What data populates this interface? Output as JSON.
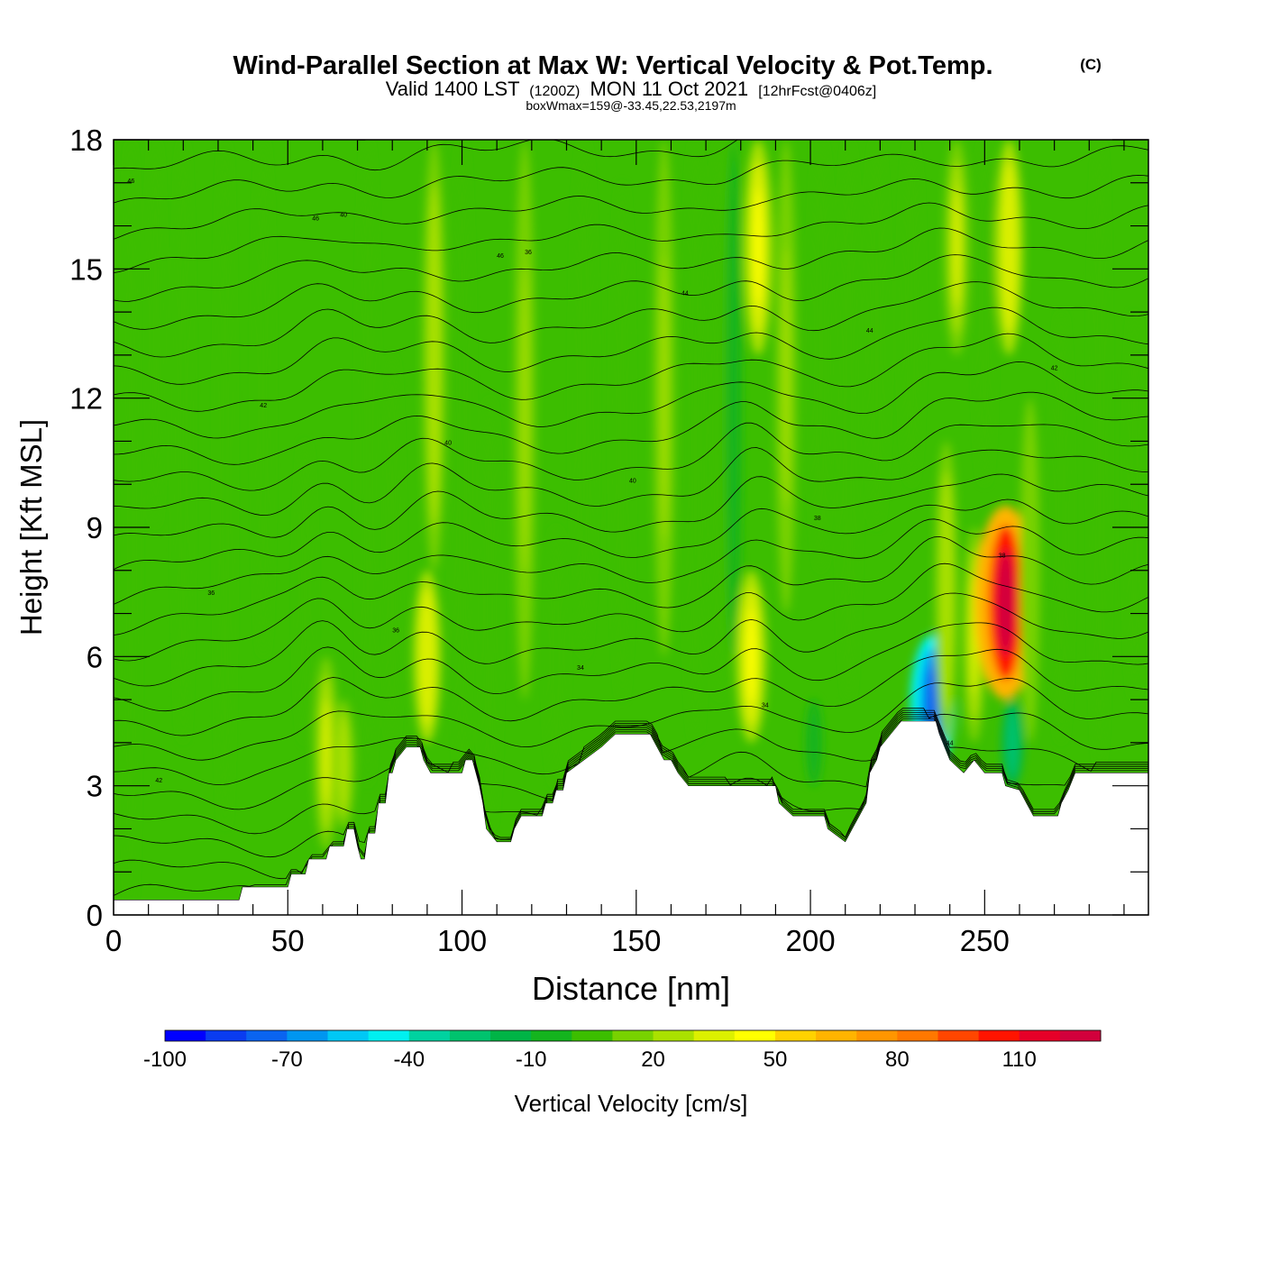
{
  "chart_data": {
    "type": "heatmap",
    "title": {
      "main": "Wind-Parallel Section at Max W: Vertical Velocity & Pot.Temp.",
      "copyright": "(C)",
      "valid_a": "Valid 1400 LST",
      "valid_utc": "(1200Z)",
      "valid_b": "MON 11 Oct 2021",
      "fcst": "[12hrFcst@0406z]",
      "boxwmax": "boxWmax=159@-33.45,22.53,2197m"
    },
    "xlabel": "Distance [nm]",
    "ylabel": "Height [Kft MSL]",
    "xlim": [
      0,
      297
    ],
    "ylim": [
      0,
      18
    ],
    "x_ticks": [
      0,
      50,
      100,
      150,
      200,
      250
    ],
    "y_ticks": [
      0,
      3,
      6,
      9,
      12,
      15,
      18
    ],
    "colorbar": {
      "label": "Vertical Velocity [cm/s]",
      "min": -100,
      "max": 130,
      "step": 10,
      "tick_labels": [
        "-100",
        "-70",
        "-40",
        "-10",
        "20",
        "50",
        "80",
        "110"
      ],
      "colors": [
        "#0000ff",
        "#0a3cf0",
        "#0a64f0",
        "#0096f0",
        "#00c8f5",
        "#00f0f0",
        "#00d2a0",
        "#00c36e",
        "#00b446",
        "#14b41e",
        "#3cbe00",
        "#78d200",
        "#aae100",
        "#dcf000",
        "#ffff00",
        "#ffd200",
        "#ffb400",
        "#ff9600",
        "#ff7800",
        "#ff4600",
        "#ff1400",
        "#e60028",
        "#d2003c"
      ]
    },
    "background_w": 0,
    "updrafts": [
      {
        "x": 5,
        "y0": 0,
        "y1": 18,
        "w": 0
      },
      {
        "x": 12,
        "y0": 9,
        "y1": 18,
        "w": 3
      },
      {
        "x": 20,
        "y0": 4,
        "y1": 18,
        "w": 6
      },
      {
        "x": 32,
        "y0": 2,
        "y1": 18,
        "w": 5
      },
      {
        "x": 43,
        "y0": 6,
        "y1": 18,
        "w": 7
      },
      {
        "x": 55,
        "y0": 4,
        "y1": 11,
        "w": 8
      },
      {
        "x": 61,
        "y0": 1.5,
        "y1": 6,
        "w": 30
      },
      {
        "x": 66,
        "y0": 2,
        "y1": 5,
        "w": 24
      },
      {
        "x": 73,
        "y0": 3,
        "y1": 18,
        "w": 10
      },
      {
        "x": 80,
        "y0": 4,
        "y1": 13,
        "w": 9
      },
      {
        "x": 90,
        "y0": 4,
        "y1": 8,
        "w": 38
      },
      {
        "x": 92,
        "y0": 8,
        "y1": 18,
        "w": 27
      },
      {
        "x": 100,
        "y0": 3,
        "y1": 18,
        "w": 14
      },
      {
        "x": 108,
        "y0": 2,
        "y1": 12,
        "w": 12
      },
      {
        "x": 118,
        "y0": 5,
        "y1": 18,
        "w": 22
      },
      {
        "x": 127,
        "y0": 3,
        "y1": 9,
        "w": 14
      },
      {
        "x": 135,
        "y0": 6,
        "y1": 18,
        "w": 18
      },
      {
        "x": 146,
        "y0": 5,
        "y1": 17,
        "w": 10
      },
      {
        "x": 158,
        "y0": 6,
        "y1": 18,
        "w": 22
      },
      {
        "x": 167,
        "y0": 4,
        "y1": 18,
        "w": 17
      },
      {
        "x": 174,
        "y0": 5,
        "y1": 18,
        "w": 14
      },
      {
        "x": 178,
        "y0": 6,
        "y1": 18,
        "w": -10
      },
      {
        "x": 183,
        "y0": 4,
        "y1": 8,
        "w": 44
      },
      {
        "x": 185,
        "y0": 13,
        "y1": 18,
        "w": 40
      },
      {
        "x": 193,
        "y0": 7,
        "y1": 18,
        "w": 22
      },
      {
        "x": 201,
        "y0": 3,
        "y1": 5,
        "w": -12
      },
      {
        "x": 203,
        "y0": 8,
        "y1": 18,
        "w": 18
      },
      {
        "x": 211,
        "y0": 5,
        "y1": 18,
        "w": 14
      },
      {
        "x": 219,
        "y0": 9,
        "y1": 18,
        "w": 18
      },
      {
        "x": 229,
        "y0": 10,
        "y1": 18,
        "w": 16
      },
      {
        "x": 235,
        "y0": 3.3,
        "y1": 6.5,
        "w": -75
      },
      {
        "x": 239,
        "y0": 4,
        "y1": 11,
        "w": 28
      },
      {
        "x": 242,
        "y0": 13,
        "y1": 18,
        "w": 32
      },
      {
        "x": 247,
        "y0": 4,
        "y1": 9,
        "w": 30
      },
      {
        "x": 250,
        "y0": 10,
        "y1": 18,
        "w": 12
      },
      {
        "x": 256,
        "y0": 5,
        "y1": 9.5,
        "w": 125
      },
      {
        "x": 258,
        "y0": 3,
        "y1": 5,
        "w": -25
      },
      {
        "x": 257,
        "y0": 13,
        "y1": 18,
        "w": 38
      },
      {
        "x": 263,
        "y0": 4,
        "y1": 12,
        "w": 20
      },
      {
        "x": 272,
        "y0": 4,
        "y1": 14,
        "w": 12
      },
      {
        "x": 283,
        "y0": 3.5,
        "y1": 18,
        "w": 8
      },
      {
        "x": 293,
        "y0": 5,
        "y1": 14,
        "w": 6
      }
    ],
    "terrain": [
      [
        0,
        0.35
      ],
      [
        36,
        0.35
      ],
      [
        37,
        0.65
      ],
      [
        50,
        0.65
      ],
      [
        51,
        0.95
      ],
      [
        55,
        0.95
      ],
      [
        56,
        1.3
      ],
      [
        61,
        1.3
      ],
      [
        62,
        1.6
      ],
      [
        65,
        1.6
      ],
      [
        66,
        1.6
      ],
      [
        67,
        2.0
      ],
      [
        69,
        2.0
      ],
      [
        70,
        1.6
      ],
      [
        71,
        1.3
      ],
      [
        72,
        1.3
      ],
      [
        73,
        1.9
      ],
      [
        75,
        1.9
      ],
      [
        76,
        2.6
      ],
      [
        78,
        2.6
      ],
      [
        79,
        3.3
      ],
      [
        80,
        3.3
      ],
      [
        81,
        3.6
      ],
      [
        84,
        3.9
      ],
      [
        88,
        3.9
      ],
      [
        89,
        3.6
      ],
      [
        91,
        3.3
      ],
      [
        100,
        3.3
      ],
      [
        101,
        3.6
      ],
      [
        103,
        3.6
      ],
      [
        104,
        3.3
      ],
      [
        105,
        3.0
      ],
      [
        106,
        2.6
      ],
      [
        107,
        2.0
      ],
      [
        110,
        1.7
      ],
      [
        114,
        1.7
      ],
      [
        115,
        2.0
      ],
      [
        117,
        2.3
      ],
      [
        123,
        2.3
      ],
      [
        124,
        2.6
      ],
      [
        126,
        2.6
      ],
      [
        127,
        2.9
      ],
      [
        129,
        2.9
      ],
      [
        130,
        3.3
      ],
      [
        135,
        3.6
      ],
      [
        140,
        3.9
      ],
      [
        144,
        4.2
      ],
      [
        154,
        4.2
      ],
      [
        156,
        3.9
      ],
      [
        158,
        3.6
      ],
      [
        160,
        3.6
      ],
      [
        162,
        3.3
      ],
      [
        165,
        3.0
      ],
      [
        190,
        3.0
      ],
      [
        191,
        2.6
      ],
      [
        195,
        2.3
      ],
      [
        204,
        2.3
      ],
      [
        205,
        2.0
      ],
      [
        210,
        1.7
      ],
      [
        212,
        2.0
      ],
      [
        214,
        2.3
      ],
      [
        216,
        2.6
      ],
      [
        217,
        3.3
      ],
      [
        219,
        3.6
      ],
      [
        220,
        3.9
      ],
      [
        223,
        4.2
      ],
      [
        226,
        4.5
      ],
      [
        236,
        4.5
      ],
      [
        237,
        4.2
      ],
      [
        240,
        3.6
      ],
      [
        244,
        3.3
      ],
      [
        247,
        3.6
      ],
      [
        250,
        3.3
      ],
      [
        255,
        3.3
      ],
      [
        256,
        3.0
      ],
      [
        260,
        2.9
      ],
      [
        262,
        2.6
      ],
      [
        264,
        2.3
      ],
      [
        271,
        2.3
      ],
      [
        272,
        2.6
      ],
      [
        274,
        2.9
      ],
      [
        276,
        3.3
      ],
      [
        297,
        3.3
      ]
    ],
    "isentropes": {
      "count": 34,
      "labels": [
        "46",
        "46",
        "46",
        "44",
        "44",
        "42",
        "42",
        "40",
        "40",
        "38",
        "38",
        "36",
        "36",
        "34",
        "34",
        "44",
        "42",
        "40",
        "36"
      ]
    }
  }
}
